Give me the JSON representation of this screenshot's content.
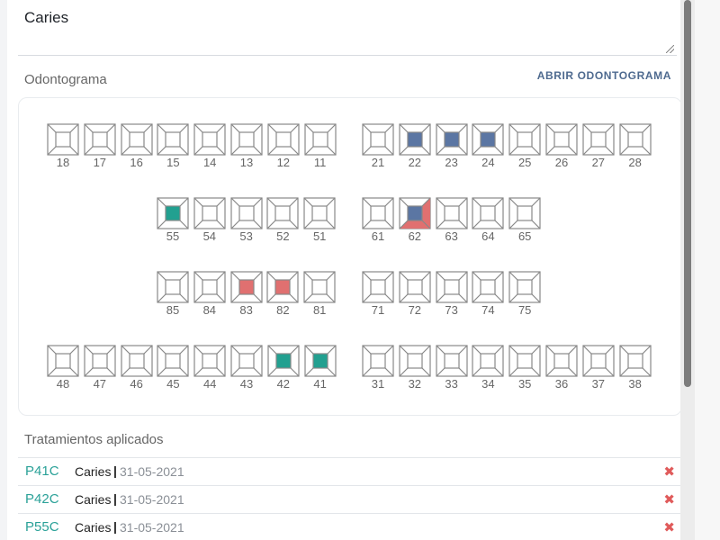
{
  "description_field": {
    "value": "Caries"
  },
  "odontogram": {
    "section_label": "Odontograma",
    "open_link": "ABRIR ODONTOGRAMA",
    "colors": {
      "blue": "#5b76a3",
      "green": "#22a090",
      "red": "#e07070",
      "empty": "#ffffff",
      "stroke": "#888888"
    },
    "rows": [
      {
        "teeth": [
          {
            "num": "18"
          },
          {
            "num": "17"
          },
          {
            "num": "16"
          },
          {
            "num": "15"
          },
          {
            "num": "14"
          },
          {
            "num": "13"
          },
          {
            "num": "12"
          },
          {
            "num": "11"
          },
          {
            "num": "21"
          },
          {
            "num": "22",
            "center": "blue"
          },
          {
            "num": "23",
            "center": "blue"
          },
          {
            "num": "24",
            "center": "blue"
          },
          {
            "num": "25"
          },
          {
            "num": "26"
          },
          {
            "num": "27"
          },
          {
            "num": "28"
          }
        ]
      },
      {
        "teeth": [
          {
            "num": "55",
            "center": "green"
          },
          {
            "num": "54"
          },
          {
            "num": "53"
          },
          {
            "num": "52"
          },
          {
            "num": "51"
          },
          {
            "num": "61"
          },
          {
            "num": "62",
            "center": "blue",
            "corner": "red"
          },
          {
            "num": "63"
          },
          {
            "num": "64"
          },
          {
            "num": "65"
          }
        ]
      },
      {
        "teeth": [
          {
            "num": "85"
          },
          {
            "num": "84"
          },
          {
            "num": "83",
            "center": "red"
          },
          {
            "num": "82",
            "center": "red"
          },
          {
            "num": "81"
          },
          {
            "num": "71"
          },
          {
            "num": "72"
          },
          {
            "num": "73"
          },
          {
            "num": "74"
          },
          {
            "num": "75"
          }
        ]
      },
      {
        "teeth": [
          {
            "num": "48"
          },
          {
            "num": "47"
          },
          {
            "num": "46"
          },
          {
            "num": "45"
          },
          {
            "num": "44"
          },
          {
            "num": "43"
          },
          {
            "num": "42",
            "center": "green"
          },
          {
            "num": "41",
            "center": "green"
          },
          {
            "num": "31"
          },
          {
            "num": "32"
          },
          {
            "num": "33"
          },
          {
            "num": "34"
          },
          {
            "num": "35"
          },
          {
            "num": "36"
          },
          {
            "num": "37"
          },
          {
            "num": "38"
          }
        ]
      }
    ]
  },
  "treatments": {
    "label": "Tratamientos aplicados",
    "items": [
      {
        "code": "P41C",
        "name": "Caries",
        "separator": "|",
        "date": "31-05-2021",
        "delete_icon": "✖"
      },
      {
        "code": "P42C",
        "name": "Caries",
        "separator": "|",
        "date": "31-05-2021",
        "delete_icon": "✖"
      },
      {
        "code": "P55C",
        "name": "Caries",
        "separator": "|",
        "date": "31-05-2021",
        "delete_icon": "✖"
      }
    ]
  }
}
